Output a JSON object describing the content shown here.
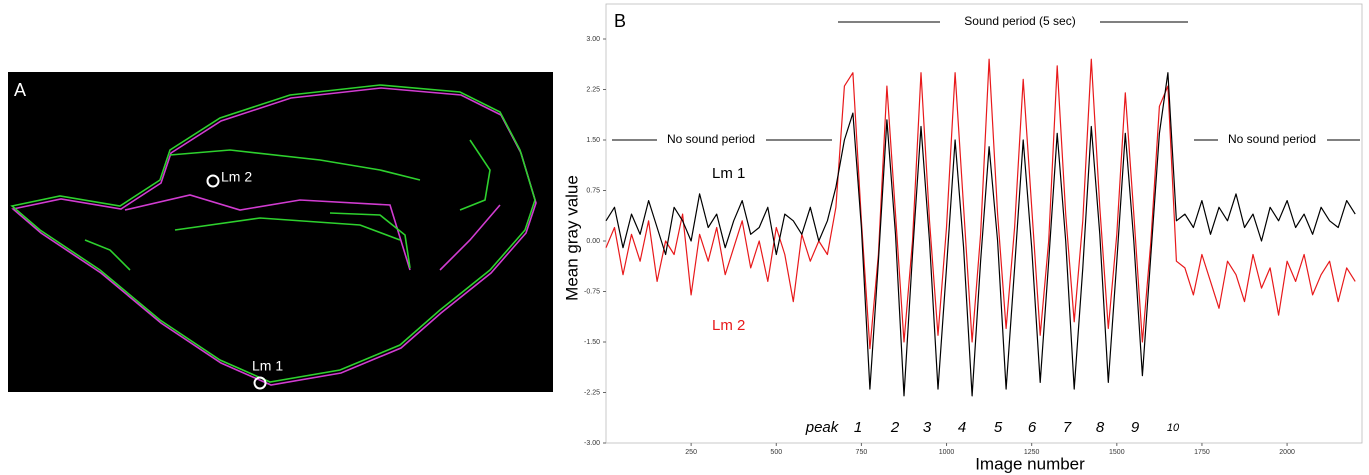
{
  "panel_a": {
    "label": "A",
    "landmarks": [
      "Lm 1",
      "Lm 2"
    ]
  },
  "chart_data": {
    "type": "line",
    "panel_label": "B",
    "xlabel": "Image number",
    "ylabel": "Mean gray value",
    "sound_period": "Sound period (5 sec)",
    "no_sound_period": [
      "No sound period",
      "No sound period"
    ],
    "peak_label": "peak",
    "peak_numbers": [
      "1",
      "2",
      "3",
      "4",
      "5",
      "6",
      "7",
      "8",
      "9",
      "10"
    ],
    "xlim": [
      0,
      2220
    ],
    "ylim": [
      -3,
      3
    ],
    "xticks": [
      250,
      500,
      750,
      1000,
      1250,
      1500,
      1750,
      2000
    ],
    "yticks": [
      {
        "value": -3,
        "label": "-3.00"
      },
      {
        "value": -2.25,
        "label": "-2.25"
      },
      {
        "value": -1.5,
        "label": "-1.50"
      },
      {
        "value": -0.75,
        "label": "-0.75"
      },
      {
        "value": 0,
        "label": "0.00"
      },
      {
        "value": 0.75,
        "label": "0.75"
      },
      {
        "value": 1.5,
        "label": "1.50"
      },
      {
        "value": 2.25,
        "label": "2.25"
      },
      {
        "value": 3,
        "label": "3.00"
      }
    ],
    "x": [
      0,
      25,
      50,
      75,
      100,
      125,
      150,
      175,
      200,
      225,
      250,
      275,
      300,
      325,
      350,
      375,
      400,
      425,
      450,
      475,
      500,
      525,
      550,
      575,
      600,
      625,
      650,
      675,
      700,
      725,
      750,
      775,
      800,
      825,
      850,
      875,
      900,
      925,
      950,
      975,
      1000,
      1025,
      1050,
      1075,
      1100,
      1125,
      1150,
      1175,
      1200,
      1225,
      1250,
      1275,
      1300,
      1325,
      1350,
      1375,
      1400,
      1425,
      1450,
      1475,
      1500,
      1525,
      1550,
      1575,
      1600,
      1625,
      1650,
      1675,
      1700,
      1725,
      1750,
      1775,
      1800,
      1825,
      1850,
      1875,
      1900,
      1925,
      1950,
      1975,
      2000,
      2025,
      2050,
      2075,
      2100,
      2125,
      2150,
      2175,
      2200
    ],
    "series": [
      {
        "name": "Lm 1",
        "color": "#000000",
        "values": [
          0.3,
          0.5,
          -0.1,
          0.4,
          0.1,
          0.6,
          0.2,
          -0.2,
          0.5,
          0.3,
          0.0,
          0.7,
          0.2,
          0.4,
          -0.1,
          0.3,
          0.6,
          0.1,
          0.2,
          0.5,
          -0.2,
          0.4,
          0.3,
          0.1,
          0.5,
          0.0,
          0.3,
          0.8,
          1.5,
          1.9,
          0.2,
          -2.2,
          -0.3,
          1.8,
          0.1,
          -2.3,
          -0.2,
          1.7,
          0.0,
          -2.2,
          -0.4,
          1.5,
          -0.1,
          -2.3,
          -0.3,
          1.4,
          0.0,
          -2.2,
          -0.4,
          1.5,
          -0.1,
          -2.1,
          -0.3,
          1.6,
          0.0,
          -2.2,
          -0.4,
          1.7,
          0.1,
          -2.1,
          -0.3,
          1.6,
          0.0,
          -2.0,
          -0.2,
          1.6,
          2.5,
          0.3,
          0.4,
          0.2,
          0.6,
          0.1,
          0.5,
          0.3,
          0.7,
          0.2,
          0.4,
          0.0,
          0.5,
          0.3,
          0.6,
          0.2,
          0.4,
          0.1,
          0.5,
          0.3,
          0.2,
          0.6,
          0.4
        ]
      },
      {
        "name": "Lm 2",
        "color": "#e8191b",
        "values": [
          -0.1,
          0.2,
          -0.5,
          0.1,
          -0.3,
          0.3,
          -0.6,
          0.0,
          -0.2,
          0.4,
          -0.8,
          0.1,
          -0.3,
          0.2,
          -0.5,
          -0.1,
          0.3,
          -0.4,
          0.0,
          -0.6,
          0.2,
          -0.2,
          -0.9,
          0.1,
          -0.3,
          0.0,
          -0.2,
          0.5,
          2.3,
          2.5,
          0.3,
          -1.6,
          -0.2,
          2.3,
          0.4,
          -1.5,
          0.0,
          2.5,
          0.3,
          -1.4,
          0.2,
          2.5,
          0.5,
          -1.5,
          0.1,
          2.7,
          0.4,
          -1.3,
          0.2,
          2.4,
          0.5,
          -1.4,
          0.0,
          2.6,
          0.4,
          -1.2,
          0.3,
          2.7,
          0.5,
          -1.3,
          0.1,
          2.2,
          0.4,
          -1.5,
          0.0,
          2.0,
          2.3,
          -0.3,
          -0.4,
          -0.8,
          -0.2,
          -0.6,
          -1.0,
          -0.3,
          -0.5,
          -0.9,
          -0.2,
          -0.7,
          -0.4,
          -1.1,
          -0.3,
          -0.6,
          -0.2,
          -0.8,
          -0.5,
          -0.3,
          -0.9,
          -0.4,
          -0.6
        ]
      }
    ]
  }
}
